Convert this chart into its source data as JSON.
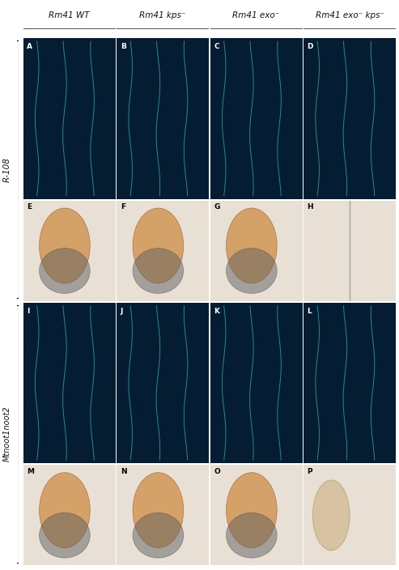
{
  "figsize": [
    4.93,
    7.04
  ],
  "dpi": 100,
  "col_headers": [
    "Rm41 WT",
    "Rm41 kps⁻",
    "Rm41 exo⁻",
    "Rm41 exo⁻ kps⁻"
  ],
  "row_labels": [
    "R-108",
    "Mtnoot1noot2"
  ],
  "panel_letters": [
    [
      "A",
      "B",
      "C",
      "D"
    ],
    [
      "E",
      "F",
      "G",
      "H"
    ],
    [
      "I",
      "J",
      "K",
      "L"
    ],
    [
      "M",
      "N",
      "O",
      "P"
    ]
  ],
  "bg_color_dark": "#041d32",
  "bg_color_light": "#e8e0d5",
  "header_line_color": "#333333",
  "underline_color": "#555555",
  "bracket_color": "#111111",
  "text_color": "#111111"
}
